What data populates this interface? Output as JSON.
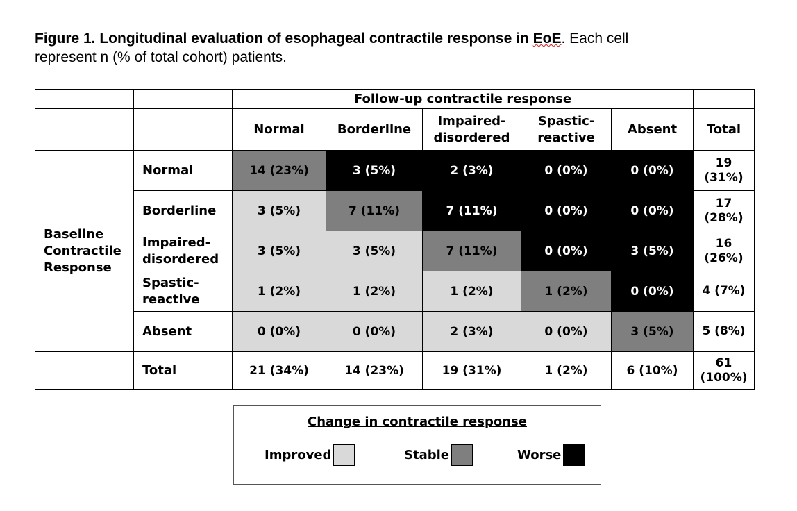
{
  "caption": {
    "bold_part": "Figure 1.  Longitudinal evaluation of esophageal contractile response in ",
    "eoe": "EoE",
    "rest_line1": ".  Each cell",
    "rest_line2": "represent n (% of total cohort) patients."
  },
  "table": {
    "followup_header": "Follow-up contractile response",
    "baseline_label": "Baseline Contractile Response",
    "columns": [
      "Normal",
      "Borderline",
      "Impaired-\ndisordered",
      "Spastic-\nreactive",
      "Absent"
    ],
    "total_label": "Total",
    "rows": [
      {
        "label": "Normal",
        "cells": [
          "14 (23%)",
          "3 (5%)",
          "2 (3%)",
          "0 (0%)",
          "0 (0%)"
        ],
        "total": "19\n(31%)"
      },
      {
        "label": "Borderline",
        "cells": [
          "3 (5%)",
          "7 (11%)",
          "7 (11%)",
          "0 (0%)",
          "0 (0%)"
        ],
        "total": "17\n(28%)"
      },
      {
        "label": "Impaired-\ndisordered",
        "cells": [
          "3 (5%)",
          "3 (5%)",
          "7 (11%)",
          "0 (0%)",
          "3 (5%)"
        ],
        "total": "16\n(26%)"
      },
      {
        "label": "Spastic-\nreactive",
        "cells": [
          "1 (2%)",
          "1 (2%)",
          "1 (2%)",
          "1 (2%)",
          "0 (0%)"
        ],
        "total": "4 (7%)"
      },
      {
        "label": "Absent",
        "cells": [
          "0 (0%)",
          "0 (0%)",
          "2 (3%)",
          "0 (0%)",
          "3 (5%)"
        ],
        "total": "5 (8%)"
      }
    ],
    "totals_row": {
      "label": "Total",
      "cells": [
        "21 (34%)",
        "14 (23%)",
        "19 (31%)",
        "1 (2%)",
        "6 (10%)"
      ],
      "total": "61\n(100%)"
    }
  },
  "legend": {
    "title": "Change in contractile response",
    "items": [
      {
        "label": "Improved",
        "color": "#d9d9d9"
      },
      {
        "label": "Stable",
        "color": "#7f7f7f"
      },
      {
        "label": "Worse",
        "color": "#000000"
      }
    ]
  }
}
